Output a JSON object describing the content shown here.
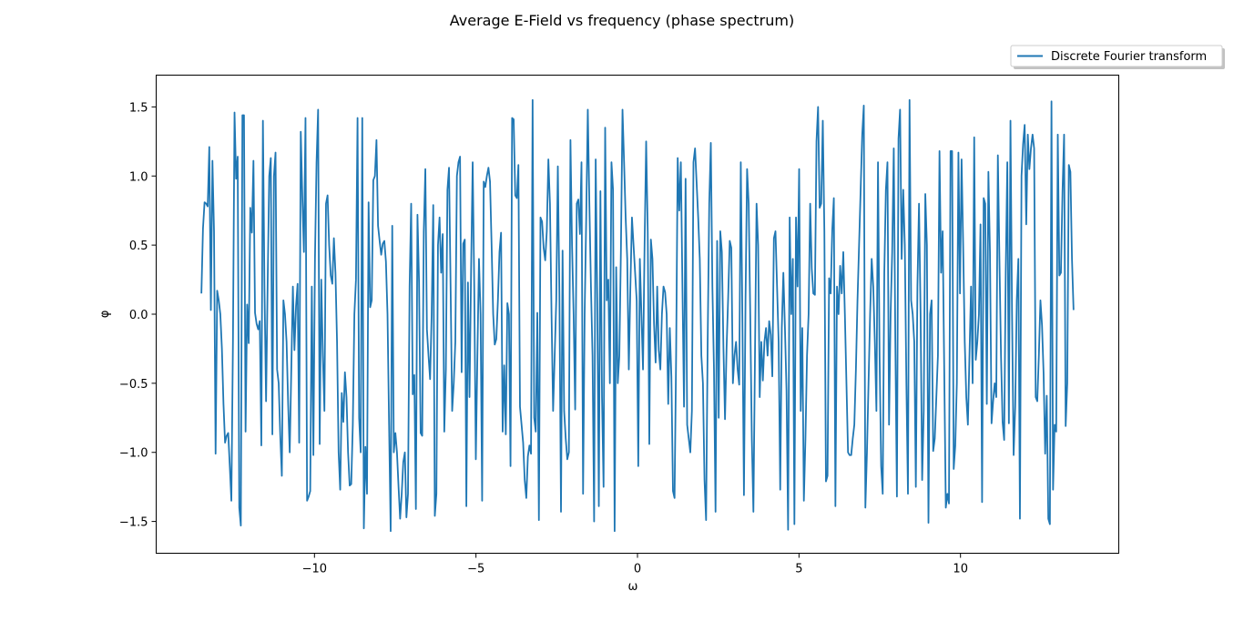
{
  "figure": {
    "title": "Average E-Field vs frequency (phase spectrum)"
  },
  "colors": {
    "series": "#1f77b4",
    "axes": "#000000",
    "background": "#ffffff",
    "legend_border": "#cccccc"
  },
  "chart_data": {
    "type": "line",
    "title": "Average E-Field vs frequency (phase spectrum)",
    "xlabel": "ω",
    "ylabel": "φ",
    "xlim": [
      -14.9,
      14.9
    ],
    "ylim": [
      -1.73,
      1.73
    ],
    "grid": false,
    "legend_position": "upper-right-outside",
    "x_ticks": [
      -10,
      -5,
      0,
      5,
      10
    ],
    "x_tick_labels": [
      "−10",
      "−5",
      "0",
      "5",
      "10"
    ],
    "y_ticks": [
      -1.5,
      -1.0,
      -0.5,
      0.0,
      0.5,
      1.0,
      1.5
    ],
    "y_tick_labels": [
      "−1.5",
      "−1.0",
      "−0.5",
      "0.0",
      "0.5",
      "1.0",
      "1.5"
    ],
    "x_start": -13.5,
    "x_end": 13.5,
    "series": [
      {
        "name": "Discrete Fourier transform",
        "values": [
          0.15,
          0.62,
          0.81,
          0.8,
          0.78,
          1.21,
          0.03,
          1.11,
          0.6,
          -1.01,
          0.17,
          0.1,
          0.0,
          -0.25,
          -0.65,
          -0.93,
          -0.88,
          -0.86,
          -1.1,
          -1.35,
          -0.2,
          1.46,
          0.98,
          1.14,
          -1.4,
          -1.53,
          1.44,
          1.44,
          -0.85,
          0.07,
          -0.21,
          0.77,
          0.59,
          1.11,
          0.01,
          -0.07,
          -0.11,
          -0.05,
          -0.95,
          1.4,
          0.18,
          -0.63,
          0.22,
          1.0,
          1.13,
          -0.87,
          1.0,
          1.17,
          -0.4,
          -0.5,
          -0.88,
          -1.17,
          0.1,
          0.0,
          -0.2,
          -0.65,
          -1.0,
          -0.4,
          0.2,
          -0.26,
          0.06,
          0.22,
          -0.93,
          1.32,
          0.85,
          0.45,
          1.42,
          -1.35,
          -1.32,
          -1.28,
          0.2,
          -1.02,
          0.4,
          1.1,
          1.48,
          -0.94,
          0.25,
          -0.3,
          -0.7,
          0.8,
          0.86,
          0.5,
          0.28,
          0.22,
          0.55,
          0.3,
          -0.2,
          -1.0,
          -1.27,
          -0.57,
          -0.78,
          -0.42,
          -0.6,
          -1.0,
          -1.24,
          -1.23,
          -0.8,
          0.0,
          0.25,
          1.42,
          -0.75,
          -1.0,
          1.42,
          -1.55,
          -0.96,
          -1.3,
          0.81,
          0.05,
          0.1,
          0.97,
          1.0,
          1.26,
          0.64,
          0.53,
          0.43,
          0.51,
          0.53,
          0.38,
          0.0,
          -0.8,
          -1.57,
          0.64,
          -1.0,
          -0.86,
          -1.0,
          -1.25,
          -1.48,
          -1.3,
          -1.07,
          -1.0,
          -1.47,
          -1.3,
          0.2,
          0.8,
          -0.58,
          -0.44,
          -1.41,
          0.72,
          0.23,
          -0.86,
          -0.88,
          0.6,
          1.05,
          -0.11,
          -0.3,
          -0.47,
          0.0,
          0.79,
          -1.46,
          -1.3,
          0.5,
          0.7,
          0.3,
          0.58,
          -0.85,
          -0.4,
          0.9,
          1.06,
          0.2,
          -0.7,
          -0.5,
          -0.2,
          1.0,
          1.1,
          1.14,
          -0.42,
          0.51,
          0.54,
          -1.39,
          0.23,
          -0.6,
          0.32,
          1.1,
          0.2,
          -1.05,
          -0.3,
          0.4,
          0.0,
          -1.35,
          0.96,
          0.92,
          1.0,
          1.06,
          0.96,
          0.5,
          0.0,
          -0.22,
          -0.18,
          0.1,
          0.45,
          0.59,
          -0.85,
          -0.37,
          -0.87,
          0.08,
          0.0,
          -1.1,
          1.42,
          1.41,
          0.86,
          0.84,
          1.08,
          -0.67,
          -0.8,
          -0.93,
          -1.2,
          -1.33,
          -1.03,
          -0.95,
          -1.01,
          1.55,
          -0.75,
          -0.85,
          0.01,
          -1.49,
          0.7,
          0.67,
          0.48,
          0.39,
          0.6,
          1.12,
          0.8,
          0.0,
          -0.7,
          -0.3,
          0.1,
          1.07,
          0.14,
          -1.43,
          0.46,
          -0.7,
          -0.9,
          -1.05,
          -1.0,
          1.26,
          0.5,
          0.0,
          -0.69,
          0.8,
          0.83,
          0.58,
          1.1,
          -1.3,
          0.0,
          0.7,
          1.48,
          0.8,
          0.2,
          -0.3,
          -1.5,
          1.12,
          0.1,
          -1.39,
          0.89,
          -0.6,
          -1.25,
          1.35,
          0.1,
          0.25,
          -0.5,
          1.1,
          0.9,
          -1.57,
          0.34,
          -0.5,
          -0.3,
          0.47,
          1.48,
          1.1,
          0.7,
          0.4,
          -0.4,
          0.2,
          0.7,
          0.5,
          0.3,
          0.1,
          -1.1,
          0.4,
          0.0,
          -0.4,
          0.5,
          1.25,
          0.6,
          -0.94,
          0.54,
          0.4,
          -0.07,
          -0.35,
          0.2,
          -0.26,
          -0.4,
          0.0,
          0.2,
          0.16,
          0.0,
          -0.65,
          -0.1,
          -0.45,
          -1.28,
          -1.33,
          -0.3,
          1.13,
          0.75,
          1.1,
          0.2,
          -0.67,
          0.98,
          -0.8,
          -0.9,
          -1.0,
          -0.7,
          1.1,
          1.2,
          0.95,
          0.7,
          0.4,
          -0.3,
          -0.5,
          -1.2,
          -1.49,
          -0.2,
          0.8,
          1.24,
          0.2,
          -0.4,
          -1.43,
          0.53,
          -0.75,
          0.6,
          0.45,
          -0.24,
          -0.76,
          -0.24,
          0.12,
          0.53,
          0.48,
          -0.5,
          -0.3,
          -0.2,
          -0.4,
          -0.51,
          1.1,
          0.0,
          -1.31,
          0.1,
          1.05,
          0.8,
          0.0,
          -0.9,
          -1.43,
          -0.3,
          0.8,
          0.5,
          -0.6,
          -0.2,
          -0.48,
          -0.2,
          -0.1,
          -0.3,
          -0.05,
          -0.15,
          -0.45,
          0.55,
          0.6,
          0.2,
          -0.2,
          -1.27,
          -0.1,
          0.3,
          -0.1,
          -0.55,
          -1.56,
          0.7,
          0.0,
          0.4,
          -1.52,
          0.7,
          0.2,
          1.05,
          -0.7,
          -0.1,
          -1.35,
          -0.9,
          -0.3,
          0.0,
          0.8,
          0.33,
          0.15,
          0.14,
          1.25,
          1.5,
          0.77,
          0.8,
          1.4,
          0.6,
          -1.21,
          -1.17,
          0.26,
          0.15,
          0.61,
          0.84,
          -1.39,
          0.2,
          0.0,
          0.35,
          0.15,
          0.45,
          0.0,
          -0.5,
          -1.0,
          -1.02,
          -1.02,
          -0.9,
          -0.8,
          -0.4,
          0.1,
          0.5,
          0.9,
          1.3,
          1.51,
          -1.4,
          -1.0,
          -0.5,
          0.0,
          0.4,
          0.2,
          -0.2,
          -0.7,
          1.1,
          -0.3,
          -1.1,
          -1.3,
          0.3,
          0.9,
          1.1,
          -0.8,
          0.0,
          0.45,
          1.2,
          -0.2,
          -1.32,
          1.27,
          1.48,
          0.4,
          0.9,
          0.5,
          -0.5,
          -1.3,
          1.55,
          0.1,
          0.0,
          -0.2,
          -1.25,
          0.2,
          0.8,
          0.0,
          -1.2,
          -0.7,
          0.87,
          0.5,
          -1.51,
          0.0,
          0.1,
          -0.99,
          -0.9,
          -0.6,
          -0.3,
          1.18,
          0.3,
          0.6,
          -0.4,
          -1.4,
          -1.3,
          -1.37,
          1.18,
          1.18,
          -1.12,
          -0.95,
          -0.5,
          1.17,
          0.15,
          1.12,
          0.5,
          -0.2,
          -0.6,
          -0.8,
          -0.3,
          0.2,
          -0.5,
          1.28,
          -0.33,
          -0.2,
          0.0,
          0.65,
          -1.36,
          0.84,
          0.8,
          -0.65,
          1.03,
          0.45,
          -0.79,
          -0.63,
          -0.5,
          -0.6,
          1.15,
          0.4,
          -0.3,
          -0.78,
          -0.91,
          0.3,
          1.1,
          -0.79,
          1.4,
          0.0,
          -1.02,
          -0.67,
          0.1,
          0.4,
          -1.48,
          1.0,
          1.23,
          1.37,
          0.65,
          1.3,
          1.05,
          1.2,
          1.3,
          1.2,
          -0.6,
          -0.63,
          -0.3,
          0.1,
          -0.08,
          -0.43,
          -1.01,
          -0.59,
          -1.48,
          -1.52,
          1.54,
          -1.27,
          -0.8,
          -0.85,
          1.3,
          0.28,
          0.3,
          0.89,
          1.3,
          -0.81,
          -0.5,
          1.08,
          1.03,
          0.4,
          0.03
        ]
      }
    ]
  }
}
